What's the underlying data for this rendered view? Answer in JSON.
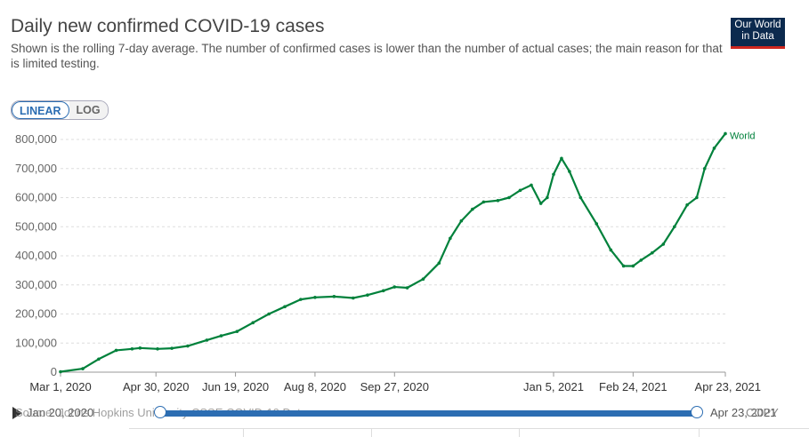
{
  "header": {
    "title": "Daily new confirmed COVID-19 cases",
    "subtitle": "Shown is the rolling 7-day average. The number of confirmed cases is lower than the number of actual cases; the main reason for that is limited testing.",
    "logo_line1": "Our World",
    "logo_line2": "in Data"
  },
  "scale_toggle": {
    "linear_label": "LINEAR",
    "log_label": "LOG",
    "selected": "LINEAR"
  },
  "timeline": {
    "start_label": "Jan 20, 2020",
    "end_label": "Apr 23, 2021",
    "source_label": "Source: Johns Hopkins University CSSE COVID-19 Data",
    "copy_label": "COPY"
  },
  "colors": {
    "series": "#00813b",
    "accent": "#2c6db2",
    "grid": "#dddddd"
  },
  "chart_data": {
    "type": "line",
    "title": "Daily new confirmed COVID-19 cases",
    "subtitle": "Shown is the rolling 7-day average. The number of confirmed cases is lower than the number of actual cases; the main reason for that is limited testing.",
    "xlabel": "",
    "ylabel": "",
    "x_range": [
      "2020-03-01",
      "2021-04-23"
    ],
    "ylim": [
      0,
      800000
    ],
    "y_ticks": [
      0,
      100000,
      200000,
      300000,
      400000,
      500000,
      600000,
      700000,
      800000
    ],
    "y_tick_labels": [
      "0",
      "100,000",
      "200,000",
      "300,000",
      "400,000",
      "500,000",
      "600,000",
      "700,000",
      "800,000"
    ],
    "x_ticks": [
      "2020-03-01",
      "2020-04-30",
      "2020-06-19",
      "2020-08-08",
      "2020-09-27",
      "2021-01-05",
      "2021-02-24",
      "2021-04-23"
    ],
    "x_tick_labels": [
      "Mar 1, 2020",
      "Apr 30, 2020",
      "Jun 19, 2020",
      "Aug 8, 2020",
      "Sep 27, 2020",
      "Jan 5, 2021",
      "Feb 24, 2021",
      "Apr 23, 2021"
    ],
    "grid": true,
    "legend": "end-of-line label",
    "series": [
      {
        "name": "World",
        "points": [
          [
            "2020-03-01",
            1500
          ],
          [
            "2020-03-15",
            12000
          ],
          [
            "2020-03-25",
            45000
          ],
          [
            "2020-04-05",
            75000
          ],
          [
            "2020-04-15",
            80000
          ],
          [
            "2020-04-20",
            83000
          ],
          [
            "2020-05-01",
            80000
          ],
          [
            "2020-05-10",
            82000
          ],
          [
            "2020-05-20",
            90000
          ],
          [
            "2020-06-01",
            110000
          ],
          [
            "2020-06-10",
            125000
          ],
          [
            "2020-06-20",
            140000
          ],
          [
            "2020-06-30",
            170000
          ],
          [
            "2020-07-10",
            200000
          ],
          [
            "2020-07-20",
            225000
          ],
          [
            "2020-07-30",
            250000
          ],
          [
            "2020-08-08",
            257000
          ],
          [
            "2020-08-20",
            260000
          ],
          [
            "2020-09-01",
            255000
          ],
          [
            "2020-09-10",
            265000
          ],
          [
            "2020-09-20",
            280000
          ],
          [
            "2020-09-27",
            293000
          ],
          [
            "2020-10-05",
            290000
          ],
          [
            "2020-10-15",
            320000
          ],
          [
            "2020-10-25",
            375000
          ],
          [
            "2020-11-01",
            460000
          ],
          [
            "2020-11-08",
            520000
          ],
          [
            "2020-11-15",
            560000
          ],
          [
            "2020-11-22",
            585000
          ],
          [
            "2020-12-01",
            590000
          ],
          [
            "2020-12-08",
            600000
          ],
          [
            "2020-12-15",
            625000
          ],
          [
            "2020-12-22",
            643000
          ],
          [
            "2020-12-28",
            580000
          ],
          [
            "2021-01-01",
            600000
          ],
          [
            "2021-01-05",
            680000
          ],
          [
            "2021-01-10",
            735000
          ],
          [
            "2021-01-15",
            690000
          ],
          [
            "2021-01-22",
            600000
          ],
          [
            "2021-02-01",
            510000
          ],
          [
            "2021-02-10",
            420000
          ],
          [
            "2021-02-18",
            365000
          ],
          [
            "2021-02-24",
            365000
          ],
          [
            "2021-03-01",
            385000
          ],
          [
            "2021-03-08",
            410000
          ],
          [
            "2021-03-15",
            440000
          ],
          [
            "2021-03-22",
            500000
          ],
          [
            "2021-03-30",
            575000
          ],
          [
            "2021-04-05",
            600000
          ],
          [
            "2021-04-10",
            700000
          ],
          [
            "2021-04-16",
            770000
          ],
          [
            "2021-04-23",
            820000
          ]
        ]
      }
    ]
  }
}
